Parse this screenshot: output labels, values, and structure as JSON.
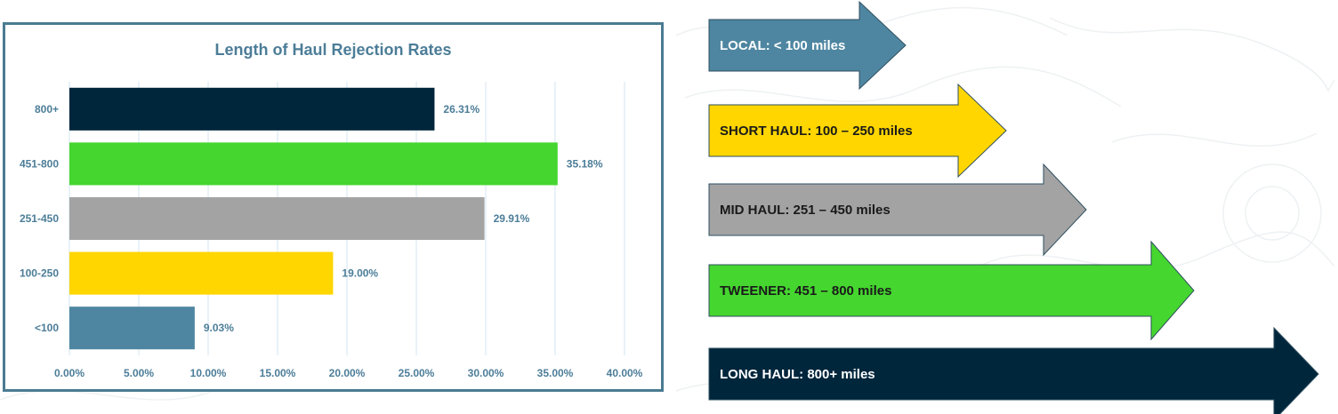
{
  "chart_data": {
    "type": "bar",
    "orientation": "horizontal",
    "title": "Length of Haul Rejection Rates",
    "categories": [
      "800+",
      "451-800",
      "251-450",
      "100-250",
      "<100"
    ],
    "values": [
      26.31,
      35.18,
      29.91,
      19.0,
      9.03
    ],
    "data_labels": [
      "26.31%",
      "35.18%",
      "29.91%",
      "19.00%",
      "9.03%"
    ],
    "bar_colors": [
      "#00263c",
      "#45d62f",
      "#a3a3a3",
      "#ffd600",
      "#4e86a1"
    ],
    "xlim": [
      0,
      40
    ],
    "x_ticks": [
      "0.00%",
      "5.00%",
      "10.00%",
      "15.00%",
      "20.00%",
      "25.00%",
      "30.00%",
      "35.00%",
      "40.00%"
    ],
    "grid": "vertical",
    "legend": "none"
  },
  "arrows": [
    {
      "label": "LOCAL:  < 100 miles",
      "fill": "#4e86a1",
      "text_color": "#ffffff"
    },
    {
      "label": "SHORT HAUL:  100 – 250 miles",
      "fill": "#ffd600",
      "text_color": "#1a1a1a"
    },
    {
      "label": "MID HAUL:  251 – 450 miles",
      "fill": "#a3a3a3",
      "text_color": "#1a1a1a"
    },
    {
      "label": "TWEENER:  451 – 800 miles",
      "fill": "#45d62f",
      "text_color": "#1a1a1a"
    },
    {
      "label": "LONG HAUL:  800+ miles",
      "fill": "#00263c",
      "text_color": "#ffffff"
    }
  ],
  "colors": {
    "panel_border": "#4a7b92",
    "text_accent": "#4c7d98",
    "gridline": "#d3e6f0"
  }
}
